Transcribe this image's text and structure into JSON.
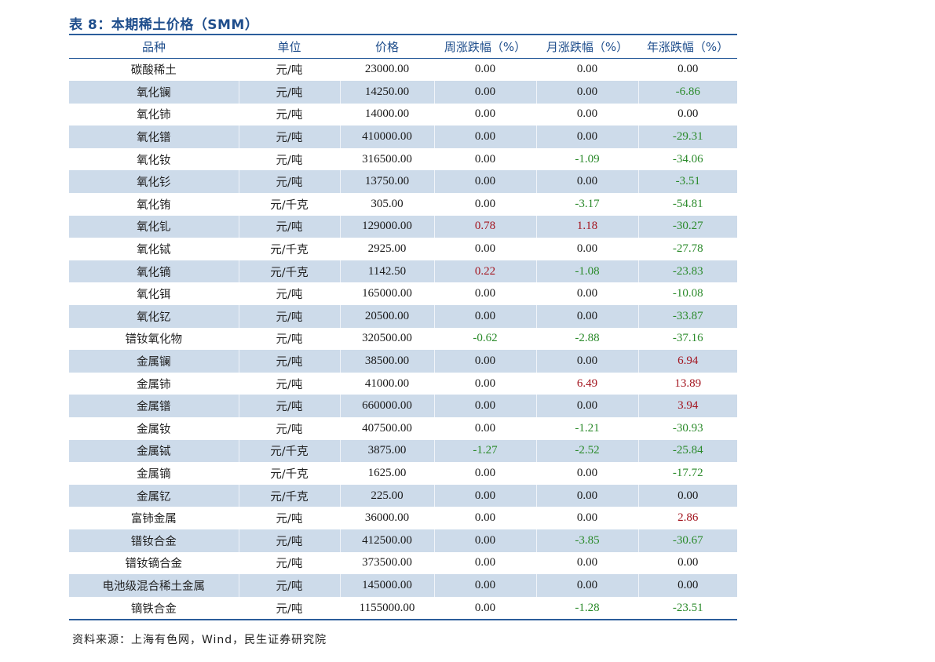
{
  "title": "表 8：本期稀土价格（SMM）",
  "table": {
    "headers": [
      "品种",
      "单位",
      "价格",
      "周涨跌幅（%）",
      "月涨跌幅（%）",
      "年涨跌幅（%）"
    ],
    "rows": [
      {
        "name": "碳酸稀土",
        "unit": "元/吨",
        "price": "23000.00",
        "week": "0.00",
        "month": "0.00",
        "year": "0.00"
      },
      {
        "name": "氧化镧",
        "unit": "元/吨",
        "price": "14250.00",
        "week": "0.00",
        "month": "0.00",
        "year": "-6.86"
      },
      {
        "name": "氧化铈",
        "unit": "元/吨",
        "price": "14000.00",
        "week": "0.00",
        "month": "0.00",
        "year": "0.00"
      },
      {
        "name": "氧化镨",
        "unit": "元/吨",
        "price": "410000.00",
        "week": "0.00",
        "month": "0.00",
        "year": "-29.31"
      },
      {
        "name": "氧化钕",
        "unit": "元/吨",
        "price": "316500.00",
        "week": "0.00",
        "month": "-1.09",
        "year": "-34.06"
      },
      {
        "name": "氧化钐",
        "unit": "元/吨",
        "price": "13750.00",
        "week": "0.00",
        "month": "0.00",
        "year": "-3.51"
      },
      {
        "name": "氧化铕",
        "unit": "元/千克",
        "price": "305.00",
        "week": "0.00",
        "month": "-3.17",
        "year": "-54.81"
      },
      {
        "name": "氧化钆",
        "unit": "元/吨",
        "price": "129000.00",
        "week": "0.78",
        "month": "1.18",
        "year": "-30.27"
      },
      {
        "name": "氧化铽",
        "unit": "元/千克",
        "price": "2925.00",
        "week": "0.00",
        "month": "0.00",
        "year": "-27.78"
      },
      {
        "name": "氧化镝",
        "unit": "元/千克",
        "price": "1142.50",
        "week": "0.22",
        "month": "-1.08",
        "year": "-23.83"
      },
      {
        "name": "氧化铒",
        "unit": "元/吨",
        "price": "165000.00",
        "week": "0.00",
        "month": "0.00",
        "year": "-10.08"
      },
      {
        "name": "氧化钇",
        "unit": "元/吨",
        "price": "20500.00",
        "week": "0.00",
        "month": "0.00",
        "year": "-33.87"
      },
      {
        "name": "镨钕氧化物",
        "unit": "元/吨",
        "price": "320500.00",
        "week": "-0.62",
        "month": "-2.88",
        "year": "-37.16"
      },
      {
        "name": "金属镧",
        "unit": "元/吨",
        "price": "38500.00",
        "week": "0.00",
        "month": "0.00",
        "year": "6.94"
      },
      {
        "name": "金属铈",
        "unit": "元/吨",
        "price": "41000.00",
        "week": "0.00",
        "month": "6.49",
        "year": "13.89"
      },
      {
        "name": "金属镨",
        "unit": "元/吨",
        "price": "660000.00",
        "week": "0.00",
        "month": "0.00",
        "year": "3.94"
      },
      {
        "name": "金属钕",
        "unit": "元/吨",
        "price": "407500.00",
        "week": "0.00",
        "month": "-1.21",
        "year": "-30.93"
      },
      {
        "name": "金属铽",
        "unit": "元/千克",
        "price": "3875.00",
        "week": "-1.27",
        "month": "-2.52",
        "year": "-25.84"
      },
      {
        "name": "金属镝",
        "unit": "元/千克",
        "price": "1625.00",
        "week": "0.00",
        "month": "0.00",
        "year": "-17.72"
      },
      {
        "name": "金属钇",
        "unit": "元/千克",
        "price": "225.00",
        "week": "0.00",
        "month": "0.00",
        "year": "0.00"
      },
      {
        "name": "富铈金属",
        "unit": "元/吨",
        "price": "36000.00",
        "week": "0.00",
        "month": "0.00",
        "year": "2.86"
      },
      {
        "name": "镨钕合金",
        "unit": "元/吨",
        "price": "412500.00",
        "week": "0.00",
        "month": "-3.85",
        "year": "-30.67"
      },
      {
        "name": "镨钕镝合金",
        "unit": "元/吨",
        "price": "373500.00",
        "week": "0.00",
        "month": "0.00",
        "year": "0.00"
      },
      {
        "name": "电池级混合稀土金属",
        "unit": "元/吨",
        "price": "145000.00",
        "week": "0.00",
        "month": "0.00",
        "year": "0.00"
      },
      {
        "name": "镝铁合金",
        "unit": "元/吨",
        "price": "1155000.00",
        "week": "0.00",
        "month": "-1.28",
        "year": "-23.51"
      }
    ]
  },
  "colors": {
    "header_text": "#1f4e8c",
    "rule": "#2b5d9b",
    "stripe": "#cddbea",
    "positive": "#a3141e",
    "negative": "#2a8a2a"
  },
  "source": "资料来源：上海有色网，Wind，民生证券研究院"
}
